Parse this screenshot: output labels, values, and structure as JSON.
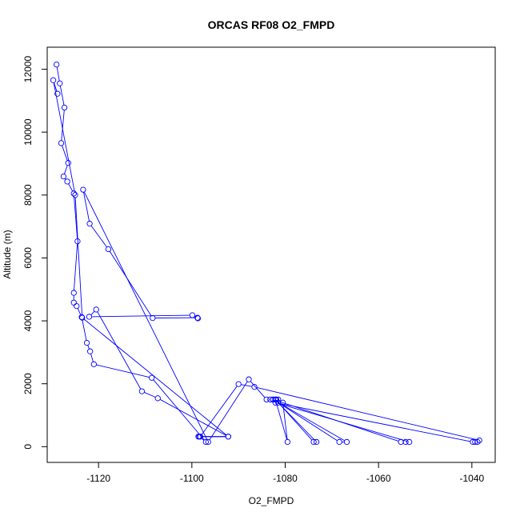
{
  "chart_data": {
    "type": "line",
    "title": "ORCAS RF08 O2_FMPD",
    "xlabel": "O2_FMPD",
    "ylabel": "Altitude (m)",
    "xlim": [
      -1131,
      -1035
    ],
    "ylim": [
      -500,
      12700
    ],
    "xticks": [
      -1120,
      -1100,
      -1080,
      -1060,
      -1040
    ],
    "yticks": [
      0,
      2000,
      4000,
      6000,
      8000,
      10000,
      12000
    ],
    "grid": false,
    "color": "#0000ff",
    "markers": "open-circle",
    "series": [
      {
        "x": [
          -1129.0,
          -1128.3,
          -1127.3,
          -1128.0,
          -1126.5,
          -1127.5,
          -1126.7,
          -1125.3,
          -1124.5,
          -1125.3,
          -1125.3,
          -1124.7,
          -1123.6,
          -1122.5,
          -1121.8,
          -1121.0,
          -1108.6,
          -1097.0,
          -1098.4,
          -1092.2,
          -1107.3,
          -1110.7,
          -1120.5,
          -1122.0,
          -1099.9,
          -1098.7,
          -1098.8,
          -1108.4,
          -1117.9,
          -1121.9,
          -1123.3,
          -1096.5,
          -1087.8,
          -1084.0,
          -1083.2,
          -1082.6,
          -1082.1,
          -1081.9,
          -1081.5,
          -1080.5,
          -1079.5,
          -1082.1,
          -1073.9,
          -1073.3,
          -1081.5,
          -1068.4,
          -1066.8,
          -1082.6,
          -1055.2,
          -1054.2,
          -1053.4,
          -1082.1,
          -1039.8,
          -1039.3,
          -1038.8,
          -1038.4,
          -1086.6,
          -1090.0,
          -1098.2,
          -1098.6,
          -1092.2,
          -1123.5,
          -1125.0,
          -1129.7,
          -1128.8
        ],
        "y": [
          12150,
          11550,
          10780,
          9650,
          9020,
          8590,
          8430,
          8050,
          6530,
          4890,
          4580,
          4470,
          4120,
          3300,
          3030,
          2620,
          2190,
          150,
          320,
          320,
          1540,
          1760,
          4360,
          4130,
          4180,
          4080,
          4100,
          4090,
          6280,
          7090,
          8170,
          150,
          2140,
          1500,
          1500,
          1500,
          1500,
          1500,
          1500,
          1400,
          150,
          1500,
          150,
          150,
          1400,
          150,
          150,
          1500,
          150,
          150,
          150,
          1400,
          150,
          150,
          150,
          200,
          1900,
          1990,
          320,
          320,
          320,
          4100,
          8000,
          11650,
          11220
        ]
      }
    ]
  }
}
